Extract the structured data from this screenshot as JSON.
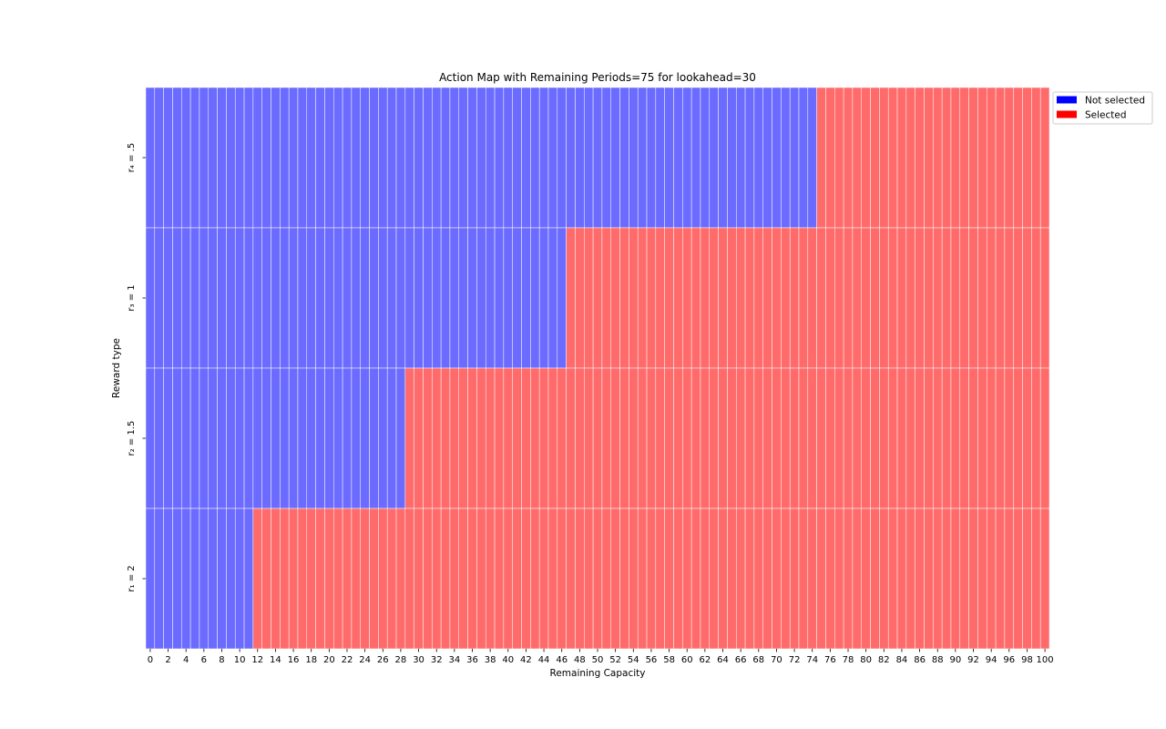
{
  "chart_data": {
    "type": "heatmap",
    "title": "Action Map with Remaining Periods=75 for lookahead=30",
    "xlabel": "Remaining Capacity",
    "ylabel": "Reward type",
    "x_range": [
      0,
      100
    ],
    "x_tick_labels": [
      "0",
      "2",
      "4",
      "6",
      "8",
      "10",
      "12",
      "14",
      "16",
      "18",
      "20",
      "22",
      "24",
      "26",
      "28",
      "30",
      "32",
      "34",
      "36",
      "38",
      "40",
      "42",
      "44",
      "46",
      "48",
      "50",
      "52",
      "54",
      "56",
      "58",
      "60",
      "62",
      "64",
      "66",
      "68",
      "70",
      "72",
      "74",
      "76",
      "78",
      "80",
      "82",
      "84",
      "86",
      "88",
      "90",
      "92",
      "94",
      "96",
      "98",
      "100"
    ],
    "rows_top_to_bottom": [
      {
        "label": "$r_4 = .5$",
        "label_display": "r₄ = .5",
        "selected_from_capacity": 75
      },
      {
        "label": "$r_3 = 1$",
        "label_display": "r₃ = 1",
        "selected_from_capacity": 47
      },
      {
        "label": "$r_2 = 1.5$",
        "label_display": "r₂ = 1.5",
        "selected_from_capacity": 29
      },
      {
        "label": "$r_1 = 2$",
        "label_display": "r₁ = 2",
        "selected_from_capacity": 12
      }
    ],
    "legend": {
      "placement": "upper-right-outside",
      "entries": [
        {
          "label": "Not selected",
          "color": "#0000ff"
        },
        {
          "label": "Selected",
          "color": "#ff0000"
        }
      ]
    },
    "cell_colors": {
      "not_selected": "#6b6bff",
      "selected": "#ff6b6b",
      "grid_line": "#ffffff"
    }
  }
}
